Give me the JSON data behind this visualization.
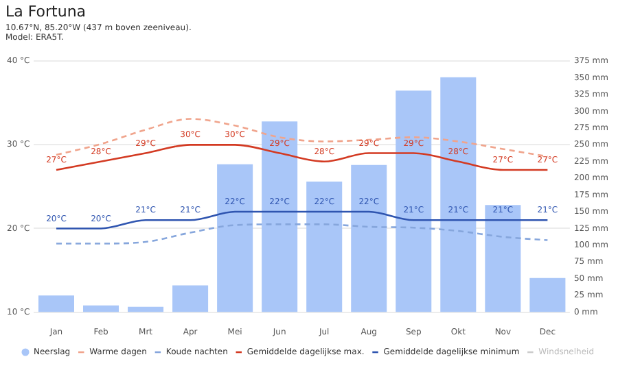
{
  "chart_data": {
    "type": "bar",
    "title": "La Fortuna",
    "subtitle": "10.67°N, 85.20°W (437 m boven zeeniveau).\nModel: ERA5T.",
    "categories": [
      "Jan",
      "Feb",
      "Mrt",
      "Apr",
      "Mei",
      "Jun",
      "Jul",
      "Aug",
      "Sep",
      "Okt",
      "Nov",
      "Dec"
    ],
    "series": [
      {
        "name": "Neerslag",
        "axis": "y2",
        "color": "#a9c6f8",
        "values": [
          25,
          10,
          8,
          40,
          221,
          285,
          195,
          220,
          331,
          351,
          160,
          51
        ]
      },
      {
        "name": "Warme dagen",
        "type": "line",
        "line_style": "dashed",
        "color": "#f0a48c",
        "values": [
          28.8,
          30.1,
          31.8,
          33.1,
          32.3,
          30.9,
          30.4,
          30.6,
          30.9,
          30.4,
          29.5,
          28.6
        ]
      },
      {
        "name": "Koude nachten",
        "type": "line",
        "line_style": "dashed",
        "color": "#86a6dc",
        "values": [
          18.2,
          18.2,
          18.4,
          19.5,
          20.4,
          20.5,
          20.5,
          20.2,
          20.1,
          19.7,
          19.0,
          18.6
        ]
      },
      {
        "name": "Gemiddelde dagelijkse max.",
        "type": "line",
        "line_style": "solid",
        "color": "#d33a22",
        "values": [
          27,
          28,
          29,
          30,
          30,
          29,
          28,
          29,
          29,
          28,
          27,
          27
        ],
        "value_labels": [
          "27°C",
          "28°C",
          "29°C",
          "30°C",
          "30°C",
          "29°C",
          "28°C",
          "29°C",
          "29°C",
          "28°C",
          "27°C",
          "27°C"
        ]
      },
      {
        "name": "Gemiddelde dagelijkse minimum",
        "type": "line",
        "line_style": "solid",
        "color": "#2f55b0",
        "values": [
          20,
          20,
          21,
          21,
          22,
          22,
          22,
          22,
          21,
          21,
          21,
          21
        ],
        "value_labels": [
          "20°C",
          "20°C",
          "21°C",
          "21°C",
          "22°C",
          "22°C",
          "22°C",
          "22°C",
          "21°C",
          "21°C",
          "21°C",
          "21°C"
        ]
      },
      {
        "name": "Windsnelheid",
        "type": "line",
        "line_style": "solid",
        "color": "#cccccc",
        "values": [
          null,
          null,
          null,
          null,
          null,
          null,
          null,
          null,
          null,
          null,
          null,
          null
        ]
      }
    ],
    "ylim": [
      10,
      40
    ],
    "yticks": [
      {
        "value": 10,
        "label": "10 °C"
      },
      {
        "value": 20,
        "label": "20 °C"
      },
      {
        "value": 30,
        "label": "30 °C"
      },
      {
        "value": 40,
        "label": "40 °C"
      }
    ],
    "y2lim": [
      0,
      375
    ],
    "y2ticks": [
      {
        "value": 0,
        "label": "0 mm"
      },
      {
        "value": 25,
        "label": "25 mm"
      },
      {
        "value": 50,
        "label": "50 mm"
      },
      {
        "value": 75,
        "label": "75 mm"
      },
      {
        "value": 100,
        "label": "100 mm"
      },
      {
        "value": 125,
        "label": "125 mm"
      },
      {
        "value": 150,
        "label": "150 mm"
      },
      {
        "value": 175,
        "label": "175 mm"
      },
      {
        "value": 200,
        "label": "200 mm"
      },
      {
        "value": 225,
        "label": "225 mm"
      },
      {
        "value": 250,
        "label": "250 mm"
      },
      {
        "value": 275,
        "label": "275 mm"
      },
      {
        "value": 300,
        "label": "300 mm"
      },
      {
        "value": 325,
        "label": "325 mm"
      },
      {
        "value": 350,
        "label": "350 mm"
      },
      {
        "value": 375,
        "label": "375 mm"
      }
    ],
    "grid": "y",
    "legend": "bottom",
    "marker": "none"
  }
}
